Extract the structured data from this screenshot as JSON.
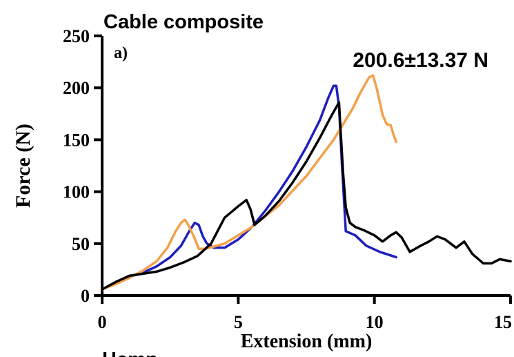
{
  "chart_data": {
    "type": "line",
    "title": "Cable composite",
    "panel_label": "a)",
    "annotation": "200.6±13.37 N",
    "footer_text": "Hemp",
    "xlabel": "Extension (mm)",
    "ylabel": "Force (N)",
    "xlim": [
      0,
      15
    ],
    "ylim": [
      0,
      250
    ],
    "x_ticks": [
      0,
      5,
      10,
      15
    ],
    "y_ticks": [
      0,
      50,
      100,
      150,
      200,
      250
    ],
    "x_tick_labels": [
      "0",
      "5",
      "10",
      "15"
    ],
    "y_tick_labels": [
      "0",
      "50",
      "100",
      "150",
      "200",
      "250"
    ],
    "grid": false,
    "series": [
      {
        "color": "#1f1fbf",
        "points": [
          [
            0,
            6
          ],
          [
            0.5,
            12
          ],
          [
            1,
            18
          ],
          [
            1.5,
            22
          ],
          [
            2,
            28
          ],
          [
            2.5,
            37
          ],
          [
            2.9,
            48
          ],
          [
            3.2,
            62
          ],
          [
            3.4,
            70
          ],
          [
            3.55,
            68
          ],
          [
            3.7,
            57
          ],
          [
            3.85,
            50
          ],
          [
            4.1,
            46
          ],
          [
            4.5,
            46
          ],
          [
            5,
            54
          ],
          [
            5.5,
            66
          ],
          [
            6,
            82
          ],
          [
            6.5,
            100
          ],
          [
            7,
            120
          ],
          [
            7.5,
            143
          ],
          [
            8,
            169
          ],
          [
            8.3,
            190
          ],
          [
            8.5,
            202
          ],
          [
            8.6,
            202
          ],
          [
            8.7,
            182
          ],
          [
            8.8,
            130
          ],
          [
            8.95,
            62
          ],
          [
            9.3,
            58
          ],
          [
            9.7,
            48
          ],
          [
            10.2,
            42
          ],
          [
            10.8,
            37
          ]
        ]
      },
      {
        "color": "#f4a04a",
        "points": [
          [
            0,
            6
          ],
          [
            0.5,
            11
          ],
          [
            1,
            17
          ],
          [
            1.5,
            24
          ],
          [
            2,
            33
          ],
          [
            2.4,
            46
          ],
          [
            2.7,
            62
          ],
          [
            2.9,
            70
          ],
          [
            3.05,
            73
          ],
          [
            3.2,
            66
          ],
          [
            3.4,
            55
          ],
          [
            3.55,
            45
          ],
          [
            3.8,
            45
          ],
          [
            4.5,
            50
          ],
          [
            5.5,
            66
          ],
          [
            6.5,
            87
          ],
          [
            7.5,
            115
          ],
          [
            8.5,
            150
          ],
          [
            9.2,
            180
          ],
          [
            9.5,
            196
          ],
          [
            9.8,
            210
          ],
          [
            9.95,
            212
          ],
          [
            10.1,
            198
          ],
          [
            10.3,
            174
          ],
          [
            10.45,
            165
          ],
          [
            10.6,
            164
          ],
          [
            10.7,
            155
          ],
          [
            10.8,
            148
          ]
        ]
      },
      {
        "color": "#000000",
        "points": [
          [
            0,
            6
          ],
          [
            0.5,
            13
          ],
          [
            1,
            19
          ],
          [
            1.5,
            21
          ],
          [
            2,
            23
          ],
          [
            2.5,
            27
          ],
          [
            3,
            32
          ],
          [
            3.5,
            38
          ],
          [
            4,
            50
          ],
          [
            4.5,
            75
          ],
          [
            5,
            86
          ],
          [
            5.3,
            92
          ],
          [
            5.45,
            83
          ],
          [
            5.6,
            68
          ],
          [
            6,
            77
          ],
          [
            6.5,
            91
          ],
          [
            7,
            109
          ],
          [
            7.5,
            129
          ],
          [
            8,
            152
          ],
          [
            8.4,
            172
          ],
          [
            8.7,
            186
          ],
          [
            8.75,
            163
          ],
          [
            8.85,
            118
          ],
          [
            8.95,
            85
          ],
          [
            9.1,
            70
          ],
          [
            9.3,
            66
          ],
          [
            9.6,
            63
          ],
          [
            10,
            58
          ],
          [
            10.3,
            52
          ],
          [
            10.6,
            58
          ],
          [
            10.8,
            61
          ],
          [
            11,
            56
          ],
          [
            11.3,
            42
          ],
          [
            11.7,
            48
          ],
          [
            12,
            52
          ],
          [
            12.3,
            57
          ],
          [
            12.6,
            54
          ],
          [
            13,
            46
          ],
          [
            13.3,
            52
          ],
          [
            13.6,
            40
          ],
          [
            14,
            31
          ],
          [
            14.3,
            31
          ],
          [
            14.6,
            35
          ],
          [
            15,
            33
          ]
        ]
      }
    ]
  }
}
